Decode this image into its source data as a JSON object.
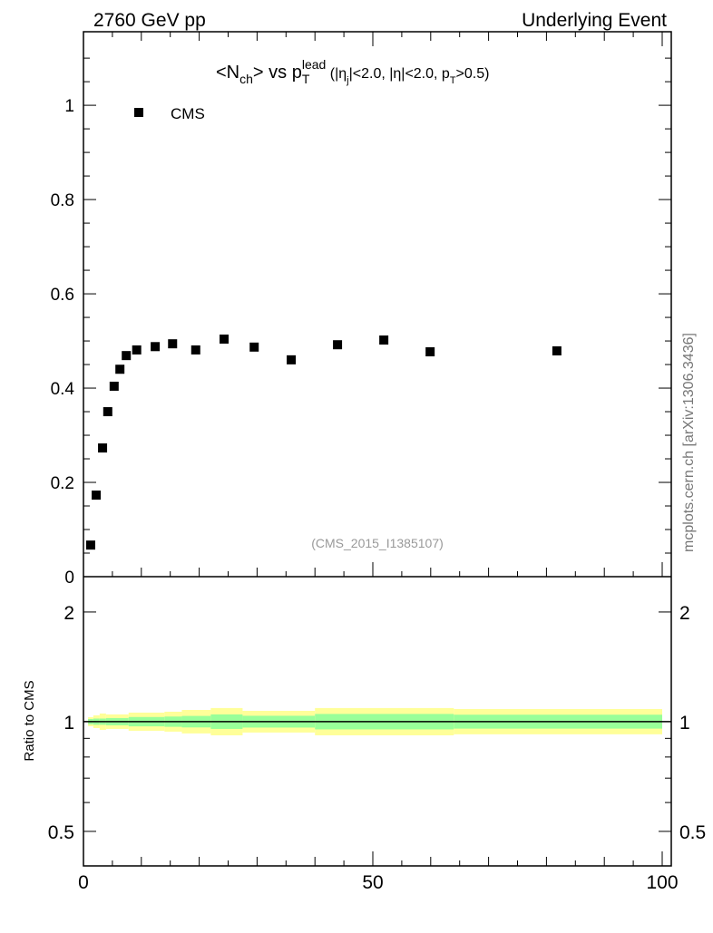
{
  "header": {
    "left": "2760 GeV pp",
    "right": "Underlying Event"
  },
  "side_label": "mcplots.cern.ch [arXiv:1306.3436]",
  "watermark": "(CMS_2015_I1385107)",
  "title_parts": {
    "a": "<N",
    "b": "ch",
    "c": "> vs p",
    "d": "lead",
    "e": "T",
    "f": " (|η",
    "g": "j",
    "h": "|<2.0, |η|<2.0, p",
    "i": "T",
    "j": ">0.5)"
  },
  "colors": {
    "data": "#000000",
    "band_inner": "#99ff99",
    "band_outer": "#ffff99"
  },
  "chart_data": [
    {
      "type": "scatter",
      "title": "<N_ch> vs p_T^lead (|η_j|<2.0, |η|<2.0, p_T>0.5)",
      "xlim": [
        0,
        100
      ],
      "ylim": [
        0,
        1.156
      ],
      "yticks": [
        "0",
        "0.2",
        "0.4",
        "0.6",
        "0.8",
        "1"
      ],
      "legend": {
        "entries": [
          "CMS"
        ],
        "placement": "top-left"
      },
      "series": [
        {
          "name": "CMS",
          "x": [
            1.25,
            2.2,
            3.3,
            4.2,
            5.3,
            6.3,
            7.4,
            9.2,
            12.4,
            15.4,
            19.4,
            24.3,
            29.5,
            35.9,
            43.9,
            51.9,
            59.9,
            81.8
          ],
          "y": [
            0.067,
            0.173,
            0.273,
            0.35,
            0.404,
            0.44,
            0.469,
            0.481,
            0.488,
            0.494,
            0.481,
            0.504,
            0.487,
            0.46,
            0.492,
            0.502,
            0.477,
            0.479
          ]
        }
      ]
    },
    {
      "type": "area",
      "ylabel": "Ratio to CMS",
      "xlim": [
        0,
        100
      ],
      "ylim": [
        0.402,
        2.5
      ],
      "yscale": "log",
      "yticks": [
        "0.5",
        "1",
        "2"
      ],
      "xticks": [
        "0",
        "50",
        "100"
      ],
      "bins": [
        {
          "lo": 0.8,
          "hi": 1.7,
          "inner": 1.017,
          "outer": 1.029
        },
        {
          "lo": 1.7,
          "hi": 2.8,
          "inner": 1.02,
          "outer": 1.041
        },
        {
          "lo": 2.8,
          "hi": 3.9,
          "inner": 1.02,
          "outer": 1.053
        },
        {
          "lo": 3.9,
          "hi": 7.8,
          "inner": 1.023,
          "outer": 1.047
        },
        {
          "lo": 7.8,
          "hi": 14,
          "inner": 1.03,
          "outer": 1.059
        },
        {
          "lo": 14,
          "hi": 17,
          "inner": 1.033,
          "outer": 1.065
        },
        {
          "lo": 17,
          "hi": 22,
          "inner": 1.037,
          "outer": 1.077
        },
        {
          "lo": 22,
          "hi": 27.5,
          "inner": 1.047,
          "outer": 1.09
        },
        {
          "lo": 27.5,
          "hi": 40,
          "inner": 1.038,
          "outer": 1.071
        },
        {
          "lo": 40,
          "hi": 64,
          "inner": 1.05,
          "outer": 1.09
        },
        {
          "lo": 64,
          "hi": 100,
          "inner": 1.045,
          "outer": 1.083
        }
      ]
    }
  ]
}
